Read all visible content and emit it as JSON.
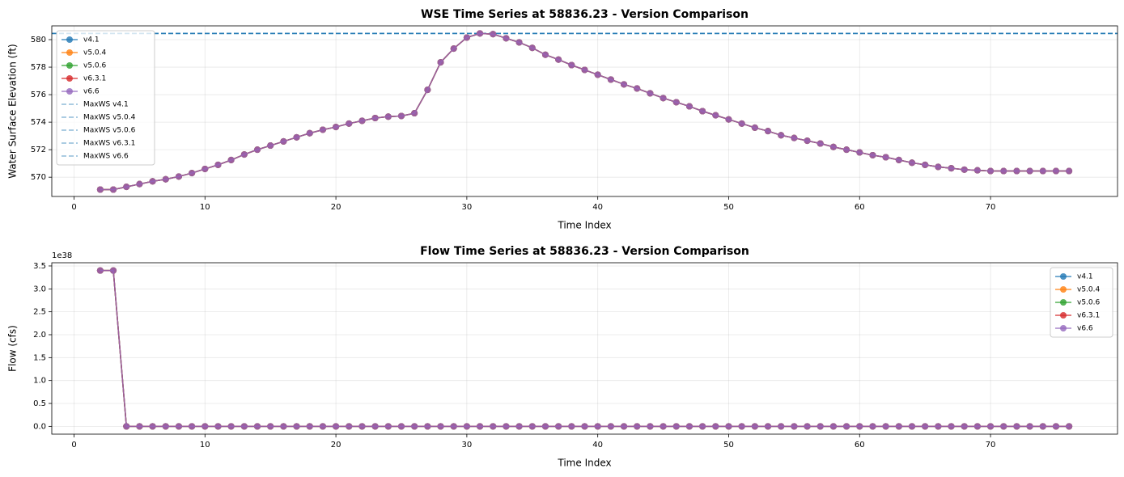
{
  "chart_data": [
    {
      "type": "line",
      "title": "WSE Time Series at 58836.23 - Version Comparison",
      "xlabel": "Time Index",
      "ylabel": "Water Surface Elevation (ft)",
      "x": [
        2,
        3,
        4,
        5,
        6,
        7,
        8,
        9,
        10,
        11,
        12,
        13,
        14,
        15,
        16,
        17,
        18,
        19,
        20,
        21,
        22,
        23,
        24,
        25,
        26,
        27,
        28,
        29,
        30,
        31,
        32,
        33,
        34,
        35,
        36,
        37,
        38,
        39,
        40,
        41,
        42,
        43,
        44,
        45,
        46,
        47,
        48,
        49,
        50,
        51,
        52,
        53,
        54,
        55,
        56,
        57,
        58,
        59,
        60,
        61,
        62,
        63,
        64,
        65,
        66,
        67,
        68,
        69,
        70,
        71,
        72,
        73,
        74,
        75,
        76
      ],
      "series": [
        {
          "name": "v4.1",
          "color": "#1f77b4",
          "values": [
            569.1,
            569.1,
            569.3,
            569.5,
            569.7,
            569.85,
            570.05,
            570.3,
            570.6,
            570.9,
            571.25,
            571.65,
            572.0,
            572.3,
            572.6,
            572.9,
            573.2,
            573.45,
            573.65,
            573.9,
            574.1,
            574.3,
            574.4,
            574.45,
            574.65,
            576.35,
            578.35,
            579.35,
            580.15,
            580.45,
            580.4,
            580.1,
            579.8,
            579.4,
            578.9,
            578.55,
            578.15,
            577.8,
            577.45,
            577.1,
            576.75,
            576.45,
            576.1,
            575.75,
            575.45,
            575.15,
            574.8,
            574.5,
            574.2,
            573.9,
            573.6,
            573.35,
            573.05,
            572.85,
            572.65,
            572.45,
            572.2,
            572.0,
            571.8,
            571.6,
            571.45,
            571.25,
            571.05,
            570.9,
            570.75,
            570.65,
            570.55,
            570.5,
            570.45,
            570.45,
            570.45,
            570.45,
            570.45,
            570.45,
            570.45
          ]
        },
        {
          "name": "v5.0.4",
          "color": "#ff7f0e",
          "values": [
            569.1,
            569.1,
            569.3,
            569.5,
            569.7,
            569.85,
            570.05,
            570.3,
            570.6,
            570.9,
            571.25,
            571.65,
            572.0,
            572.3,
            572.6,
            572.9,
            573.2,
            573.45,
            573.65,
            573.9,
            574.1,
            574.3,
            574.4,
            574.45,
            574.65,
            576.35,
            578.35,
            579.35,
            580.15,
            580.45,
            580.4,
            580.1,
            579.8,
            579.4,
            578.9,
            578.55,
            578.15,
            577.8,
            577.45,
            577.1,
            576.75,
            576.45,
            576.1,
            575.75,
            575.45,
            575.15,
            574.8,
            574.5,
            574.2,
            573.9,
            573.6,
            573.35,
            573.05,
            572.85,
            572.65,
            572.45,
            572.2,
            572.0,
            571.8,
            571.6,
            571.45,
            571.25,
            571.05,
            570.9,
            570.75,
            570.65,
            570.55,
            570.5,
            570.45,
            570.45,
            570.45,
            570.45,
            570.45,
            570.45,
            570.45
          ]
        },
        {
          "name": "v5.0.6",
          "color": "#2ca02c",
          "values": [
            569.1,
            569.1,
            569.3,
            569.5,
            569.7,
            569.85,
            570.05,
            570.3,
            570.6,
            570.9,
            571.25,
            571.65,
            572.0,
            572.3,
            572.6,
            572.9,
            573.2,
            573.45,
            573.65,
            573.9,
            574.1,
            574.3,
            574.4,
            574.45,
            574.65,
            576.35,
            578.35,
            579.35,
            580.15,
            580.45,
            580.4,
            580.1,
            579.8,
            579.4,
            578.9,
            578.55,
            578.15,
            577.8,
            577.45,
            577.1,
            576.75,
            576.45,
            576.1,
            575.75,
            575.45,
            575.15,
            574.8,
            574.5,
            574.2,
            573.9,
            573.6,
            573.35,
            573.05,
            572.85,
            572.65,
            572.45,
            572.2,
            572.0,
            571.8,
            571.6,
            571.45,
            571.25,
            571.05,
            570.9,
            570.75,
            570.65,
            570.55,
            570.5,
            570.45,
            570.45,
            570.45,
            570.45,
            570.45,
            570.45,
            570.45
          ]
        },
        {
          "name": "v6.3.1",
          "color": "#d62728",
          "values": [
            569.1,
            569.1,
            569.3,
            569.5,
            569.7,
            569.85,
            570.05,
            570.3,
            570.6,
            570.9,
            571.25,
            571.65,
            572.0,
            572.3,
            572.6,
            572.9,
            573.2,
            573.45,
            573.65,
            573.9,
            574.1,
            574.3,
            574.4,
            574.45,
            574.65,
            576.35,
            578.35,
            579.35,
            580.15,
            580.45,
            580.4,
            580.1,
            579.8,
            579.4,
            578.9,
            578.55,
            578.15,
            577.8,
            577.45,
            577.1,
            576.75,
            576.45,
            576.1,
            575.75,
            575.45,
            575.15,
            574.8,
            574.5,
            574.2,
            573.9,
            573.6,
            573.35,
            573.05,
            572.85,
            572.65,
            572.45,
            572.2,
            572.0,
            571.8,
            571.6,
            571.45,
            571.25,
            571.05,
            570.9,
            570.75,
            570.65,
            570.55,
            570.5,
            570.45,
            570.45,
            570.45,
            570.45,
            570.45,
            570.45,
            570.45
          ]
        },
        {
          "name": "v6.6",
          "color": "#9467bd",
          "values": [
            569.1,
            569.1,
            569.3,
            569.5,
            569.7,
            569.85,
            570.05,
            570.3,
            570.6,
            570.9,
            571.25,
            571.65,
            572.0,
            572.3,
            572.6,
            572.9,
            573.2,
            573.45,
            573.65,
            573.9,
            574.1,
            574.3,
            574.4,
            574.45,
            574.65,
            576.35,
            578.35,
            579.35,
            580.15,
            580.45,
            580.4,
            580.1,
            579.8,
            579.4,
            578.9,
            578.55,
            578.15,
            577.8,
            577.45,
            577.1,
            576.75,
            576.45,
            576.1,
            575.75,
            575.45,
            575.15,
            574.8,
            574.5,
            574.2,
            573.9,
            573.6,
            573.35,
            573.05,
            572.85,
            572.65,
            572.45,
            572.2,
            572.0,
            571.8,
            571.6,
            571.45,
            571.25,
            571.05,
            570.9,
            570.75,
            570.65,
            570.55,
            570.5,
            570.45,
            570.45,
            570.45,
            570.45,
            570.45,
            570.45,
            570.45
          ]
        }
      ],
      "reference_lines": [
        {
          "name": "MaxWS v4.1",
          "value": 580.45,
          "color": "#1f77b4"
        },
        {
          "name": "MaxWS v5.0.4",
          "value": 580.45,
          "color": "#1f77b4"
        },
        {
          "name": "MaxWS v5.0.6",
          "value": 580.45,
          "color": "#1f77b4"
        },
        {
          "name": "MaxWS v6.3.1",
          "value": 580.45,
          "color": "#1f77b4"
        },
        {
          "name": "MaxWS v6.6",
          "value": 580.45,
          "color": "#1f77b4"
        }
      ],
      "xlim": [
        -1.7,
        79.7
      ],
      "ylim": [
        568.6,
        581.0
      ],
      "xticks": [
        0,
        10,
        20,
        30,
        40,
        50,
        60,
        70
      ],
      "yticks": [
        570,
        572,
        574,
        576,
        578,
        580
      ],
      "grid": true,
      "legend": "upper left"
    },
    {
      "type": "line",
      "title": "Flow Time Series at 58836.23 - Version Comparison",
      "xlabel": "Time Index",
      "ylabel": "Flow (cfs)",
      "y_offset_label": "1e38",
      "x": [
        2,
        3,
        4,
        5,
        6,
        7,
        8,
        9,
        10,
        11,
        12,
        13,
        14,
        15,
        16,
        17,
        18,
        19,
        20,
        21,
        22,
        23,
        24,
        25,
        26,
        27,
        28,
        29,
        30,
        31,
        32,
        33,
        34,
        35,
        36,
        37,
        38,
        39,
        40,
        41,
        42,
        43,
        44,
        45,
        46,
        47,
        48,
        49,
        50,
        51,
        52,
        53,
        54,
        55,
        56,
        57,
        58,
        59,
        60,
        61,
        62,
        63,
        64,
        65,
        66,
        67,
        68,
        69,
        70,
        71,
        72,
        73,
        74,
        75,
        76
      ],
      "series": [
        {
          "name": "v4.1",
          "color": "#1f77b4",
          "values": [
            3.4,
            3.4,
            0,
            0,
            0,
            0,
            0,
            0,
            0,
            0,
            0,
            0,
            0,
            0,
            0,
            0,
            0,
            0,
            0,
            0,
            0,
            0,
            0,
            0,
            0,
            0,
            0,
            0,
            0,
            0,
            0,
            0,
            0,
            0,
            0,
            0,
            0,
            0,
            0,
            0,
            0,
            0,
            0,
            0,
            0,
            0,
            0,
            0,
            0,
            0,
            0,
            0,
            0,
            0,
            0,
            0,
            0,
            0,
            0,
            0,
            0,
            0,
            0,
            0,
            0,
            0,
            0,
            0,
            0,
            0,
            0,
            0,
            0,
            0,
            0
          ]
        },
        {
          "name": "v5.0.4",
          "color": "#ff7f0e",
          "values": [
            3.4,
            3.4,
            0,
            0,
            0,
            0,
            0,
            0,
            0,
            0,
            0,
            0,
            0,
            0,
            0,
            0,
            0,
            0,
            0,
            0,
            0,
            0,
            0,
            0,
            0,
            0,
            0,
            0,
            0,
            0,
            0,
            0,
            0,
            0,
            0,
            0,
            0,
            0,
            0,
            0,
            0,
            0,
            0,
            0,
            0,
            0,
            0,
            0,
            0,
            0,
            0,
            0,
            0,
            0,
            0,
            0,
            0,
            0,
            0,
            0,
            0,
            0,
            0,
            0,
            0,
            0,
            0,
            0,
            0,
            0,
            0,
            0,
            0,
            0,
            0
          ]
        },
        {
          "name": "v5.0.6",
          "color": "#2ca02c",
          "values": [
            3.4,
            3.4,
            0,
            0,
            0,
            0,
            0,
            0,
            0,
            0,
            0,
            0,
            0,
            0,
            0,
            0,
            0,
            0,
            0,
            0,
            0,
            0,
            0,
            0,
            0,
            0,
            0,
            0,
            0,
            0,
            0,
            0,
            0,
            0,
            0,
            0,
            0,
            0,
            0,
            0,
            0,
            0,
            0,
            0,
            0,
            0,
            0,
            0,
            0,
            0,
            0,
            0,
            0,
            0,
            0,
            0,
            0,
            0,
            0,
            0,
            0,
            0,
            0,
            0,
            0,
            0,
            0,
            0,
            0,
            0,
            0,
            0,
            0,
            0,
            0
          ]
        },
        {
          "name": "v6.3.1",
          "color": "#d62728",
          "values": [
            3.4,
            3.4,
            0,
            0,
            0,
            0,
            0,
            0,
            0,
            0,
            0,
            0,
            0,
            0,
            0,
            0,
            0,
            0,
            0,
            0,
            0,
            0,
            0,
            0,
            0,
            0,
            0,
            0,
            0,
            0,
            0,
            0,
            0,
            0,
            0,
            0,
            0,
            0,
            0,
            0,
            0,
            0,
            0,
            0,
            0,
            0,
            0,
            0,
            0,
            0,
            0,
            0,
            0,
            0,
            0,
            0,
            0,
            0,
            0,
            0,
            0,
            0,
            0,
            0,
            0,
            0,
            0,
            0,
            0,
            0,
            0,
            0,
            0,
            0,
            0
          ]
        },
        {
          "name": "v6.6",
          "color": "#9467bd",
          "values": [
            3.4,
            3.4,
            0,
            0,
            0,
            0,
            0,
            0,
            0,
            0,
            0,
            0,
            0,
            0,
            0,
            0,
            0,
            0,
            0,
            0,
            0,
            0,
            0,
            0,
            0,
            0,
            0,
            0,
            0,
            0,
            0,
            0,
            0,
            0,
            0,
            0,
            0,
            0,
            0,
            0,
            0,
            0,
            0,
            0,
            0,
            0,
            0,
            0,
            0,
            0,
            0,
            0,
            0,
            0,
            0,
            0,
            0,
            0,
            0,
            0,
            0,
            0,
            0,
            0,
            0,
            0,
            0,
            0,
            0,
            0,
            0,
            0,
            0,
            0,
            0
          ]
        }
      ],
      "xlim": [
        -1.7,
        79.7
      ],
      "ylim": [
        -0.17,
        3.57
      ],
      "xticks": [
        0,
        10,
        20,
        30,
        40,
        50,
        60,
        70
      ],
      "yticks": [
        {
          "value": 0,
          "label": "0.0"
        },
        0.5,
        {
          "value": 1,
          "label": "1.0"
        },
        1.5,
        {
          "value": 2,
          "label": "2.0"
        },
        2.5,
        {
          "value": 3,
          "label": "3.0"
        },
        3.5
      ],
      "grid": true,
      "legend": "upper right"
    }
  ]
}
